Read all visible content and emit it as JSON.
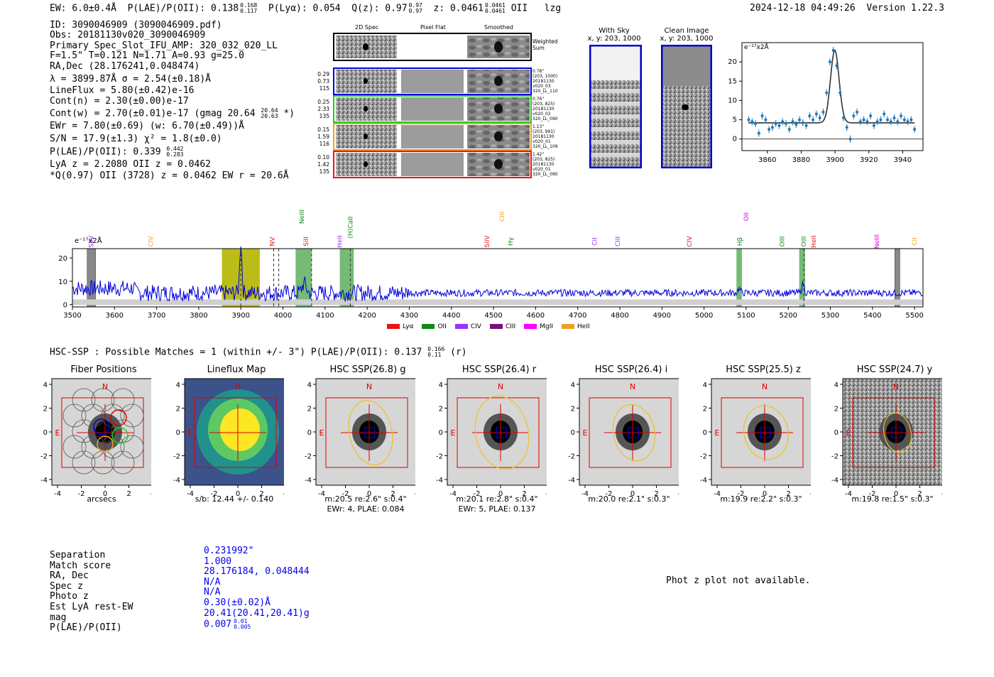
{
  "header": {
    "ew_label": "EW: ",
    "ew_value": "6.0±0.4Å",
    "plae_label": "P(LAE)/P(OII): ",
    "plae_value": "0.138",
    "plae_hi": "0.168",
    "plae_lo": "0.117",
    "plya_text": "P(Lyα): 0.054",
    "qz_label": "Q(z): 0.97",
    "qz_hi": "0.97",
    "qz_lo": "0.97",
    "z_label": "z: 0.0461",
    "z_hi": "0.0461",
    "z_lo": "0.0461",
    "z_line": "OII",
    "flag": "lzg",
    "timestamp": "2024-12-18 04:49:26",
    "version": "Version 1.22.3"
  },
  "info": {
    "id": "ID: 3090046909 (3090046909.pdf)",
    "obs": "Obs: 20181130v020_3090046909",
    "primary": "Primary Spec_Slot_IFU_AMP: 320_032_020_LL",
    "fiber": "F=1.5\"  T=0.121  N=1.71  A=0.93  g=25.0",
    "radec": "RA,Dec (28.176241,0.048474)",
    "lambda": "λ = 3899.87Å  σ = 2.54(±0.18)Å",
    "lineflux": "LineFlux = 5.80(±0.42)e-16",
    "contn": "Cont(n) = 2.30(±0.00)e-17",
    "contw": "Cont(w) = 2.70(±0.01)e-17 (gmag 20.64",
    "contw_hi": "20.64",
    "contw_lo": "20.63",
    "contw_tail": " *)",
    "ewr": "EWr = 7.80(±0.69) (w: 6.70(±0.49))Å",
    "sn": "S/N = 17.9(±1.3)  χ² = 1.8(±0.0)",
    "plae": "P(LAE)/P(OII): 0.339",
    "plae_hi": "0.442",
    "plae_lo": "0.283",
    "lyaz": "LyA z = 2.2080  OII z = 0.0462",
    "qline": "*Q(0.97) OII (3728) z = 0.0462  EW r = 20.6Å"
  },
  "cutouts": {
    "col_2d": "2D Spec",
    "col_flat": "Pixel Flat",
    "col_smooth": "Smoothed",
    "weighted": "Weighted Sum",
    "rows": [
      {
        "l1": "0.29",
        "l2": "0.73",
        "l3": "115",
        "r1": "0.78\"",
        "r2": "(203, 1000)",
        "r3": "20181130",
        "r4": "v020_03",
        "r5": "320_LL_110",
        "color": "#0000dd"
      },
      {
        "l1": "0.25",
        "l2": "2.33",
        "l3": "135",
        "r1": "0.76\"",
        "r2": "(203, 825)",
        "r3": "20181130",
        "r4": "v020_02",
        "r5": "320_LL_090",
        "color": "#22cc22"
      },
      {
        "l1": "0.15",
        "l2": "1.59",
        "l3": "116",
        "r1": "1.13\"",
        "r2": "(203, 991)",
        "r3": "20181130",
        "r4": "v020_01",
        "r5": "320_LL_109",
        "color": "#f0a020"
      },
      {
        "l1": "0.10",
        "l2": "1.42",
        "l3": "135",
        "r1": "1.42\"",
        "r2": "(203, 825)",
        "r3": "20181130",
        "r4": "v020_01",
        "r5": "320_LL_090",
        "color": "#ee1111"
      }
    ]
  },
  "sky": {
    "with_sky_title": "With Sky",
    "with_sky_xy": "x, y: 203, 1000",
    "clean_title": "Clean Image",
    "clean_xy": "x, y: 203, 1000"
  },
  "zoom_plot": {
    "ylabel": "e⁻¹⁷x2Å",
    "xticks": [
      "3860",
      "3880",
      "3900",
      "3920",
      "3940"
    ],
    "yticks": [
      "0",
      "5",
      "10",
      "15",
      "20"
    ]
  },
  "spectrum": {
    "ylabel": "e⁻¹⁷x2Å",
    "xticks": [
      "3500",
      "3600",
      "3700",
      "3800",
      "3900",
      "4000",
      "4100",
      "4200",
      "4300",
      "4400",
      "4500",
      "4600",
      "4700",
      "4800",
      "4900",
      "5000",
      "5100",
      "5200",
      "5300",
      "5400",
      "5500"
    ],
    "yticks": [
      "0",
      "10",
      "20"
    ],
    "lines": [
      {
        "label": "SiIV",
        "w": 3545,
        "c": "#9933ff",
        "row": 2
      },
      {
        "label": "CIV",
        "w": 3686,
        "c": "#f0a020",
        "row": 2
      },
      {
        "label": "NV",
        "w": 3975,
        "c": "#ee1111",
        "row": 2
      },
      {
        "label": "NeIII",
        "w": 4045,
        "c": "#118811",
        "row": 0
      },
      {
        "label": "SiII",
        "w": 4055,
        "c": "#ee1111",
        "row": 2
      },
      {
        "label": "HeII",
        "w": 4135,
        "c": "#9933ff",
        "row": 2
      },
      {
        "label": "(H)CaII",
        "w": 4160,
        "c": "#118811",
        "row": 1
      },
      {
        "label": "SiIV",
        "w": 4485,
        "c": "#ee1111",
        "row": 2
      },
      {
        "label": "CIII",
        "w": 4520,
        "c": "#f0a020",
        "row": 0
      },
      {
        "label": "Hγ",
        "w": 4540,
        "c": "#118811",
        "row": 2
      },
      {
        "label": "CII",
        "w": 4740,
        "c": "#9933ff",
        "row": 2
      },
      {
        "label": "CIII",
        "w": 4795,
        "c": "#9933ff",
        "row": 2
      },
      {
        "label": "CIV",
        "w": 4965,
        "c": "#ee1111",
        "row": 2
      },
      {
        "label": "Hβ",
        "w": 5085,
        "c": "#118811",
        "row": 2
      },
      {
        "label": "OII",
        "w": 5100,
        "c": "#dd00dd",
        "row": 0
      },
      {
        "label": "OIII",
        "w": 5185,
        "c": "#118811",
        "row": 2
      },
      {
        "label": "OIII",
        "w": 5237,
        "c": "#118811",
        "row": 2
      },
      {
        "label": "HeII",
        "w": 5260,
        "c": "#ee1111",
        "row": 2
      },
      {
        "label": "NeIII",
        "w": 5410,
        "c": "#dd00dd",
        "row": 2
      },
      {
        "label": "CII",
        "w": 5500,
        "c": "#f0a020",
        "row": 2
      }
    ],
    "legend": [
      {
        "label": "Lyα",
        "color": "#ee1111"
      },
      {
        "label": "OII",
        "color": "#118811"
      },
      {
        "label": "CIV",
        "color": "#9933ff"
      },
      {
        "label": "CIII",
        "color": "#771177"
      },
      {
        "label": "MgII",
        "color": "#ff00ff"
      },
      {
        "label": "HeII",
        "color": "#f0a020"
      }
    ]
  },
  "hsc": {
    "header": "HSC-SSP : Possible Matches = 1 (within +/- 3\")  P(LAE)/P(OII): 0.137",
    "header_hi": "0.166",
    "header_lo": "0.11",
    "header_tail": " (r)",
    "panels": [
      {
        "title": "Fiber Positions",
        "cap1": "arcsecs",
        "cap2": ""
      },
      {
        "title": "Lineflux Map",
        "cap1": "s/b: 12.44 +/- 0.140",
        "cap2": ""
      },
      {
        "title": "HSC SSP(26.8) g",
        "cap1": "m:20.5  re:2.6\"  s:0.4\"",
        "cap2": "EWr: 4, PLAE: 0.084"
      },
      {
        "title": "HSC SSP(26.4) r",
        "cap1": "m:20.1  re:2.8\"  s:0.4\"",
        "cap2": "EWr: 5, PLAE: 0.137"
      },
      {
        "title": "HSC SSP(26.4) i",
        "cap1": "m:20.0  re:2.1\"  s:0.3\"",
        "cap2": ""
      },
      {
        "title": "HSC SSP(25.5) z",
        "cap1": "m:19.9  re:2.2\"  s:0.3\"",
        "cap2": ""
      },
      {
        "title": "HSC SSP(24.7) y",
        "cap1": "m:19.8  re:1.5\"  s:0.3\"",
        "cap2": ""
      }
    ],
    "ticks": [
      "-4",
      "-2",
      "0",
      "2",
      "4"
    ],
    "north": "N",
    "east": "E"
  },
  "match": {
    "labels": [
      "Separation",
      "Match score",
      "RA, Dec",
      "Spec z",
      "Photo z",
      "Est LyA rest-EW",
      "mag",
      "P(LAE)/P(OII)"
    ],
    "values": [
      "0.231992\"",
      "1.000",
      "28.176184, 0.048444",
      "N/A",
      "N/A",
      "0.30(±0.02)Å",
      "20.41(20.41,20.41)g",
      "0.007"
    ],
    "plae_hi": "0.01",
    "plae_lo": "0.005",
    "photz_note": "Phot z plot not available."
  }
}
